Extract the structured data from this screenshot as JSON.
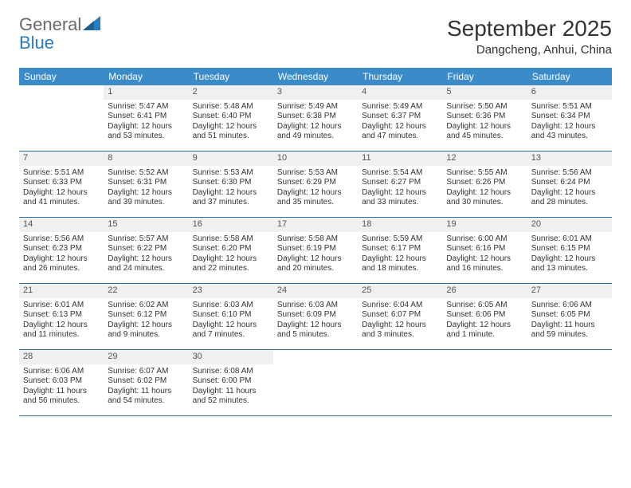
{
  "brand": {
    "line1": "General",
    "line2": "Blue"
  },
  "title": "September 2025",
  "location": "Dangcheng, Anhui, China",
  "colors": {
    "header_bg": "#3b8bc8",
    "header_text": "#ffffff",
    "day_num_bg": "#eef0f1",
    "week_border": "#2b6ea3",
    "brand_gray": "#6a6a6a",
    "brand_blue": "#2b7bbf",
    "text": "#333333",
    "page_bg": "#ffffff"
  },
  "typography": {
    "title_fontsize": 28,
    "location_fontsize": 15,
    "weekday_fontsize": 12,
    "daynum_fontsize": 11,
    "body_fontsize": 10
  },
  "layout": {
    "columns": 7,
    "cell_min_height": 82
  },
  "weekdays": [
    "Sunday",
    "Monday",
    "Tuesday",
    "Wednesday",
    "Thursday",
    "Friday",
    "Saturday"
  ],
  "first_weekday_offset": 1,
  "days": [
    {
      "n": 1,
      "sunrise": "5:47 AM",
      "sunset": "6:41 PM",
      "daylight": "12 hours and 53 minutes."
    },
    {
      "n": 2,
      "sunrise": "5:48 AM",
      "sunset": "6:40 PM",
      "daylight": "12 hours and 51 minutes."
    },
    {
      "n": 3,
      "sunrise": "5:49 AM",
      "sunset": "6:38 PM",
      "daylight": "12 hours and 49 minutes."
    },
    {
      "n": 4,
      "sunrise": "5:49 AM",
      "sunset": "6:37 PM",
      "daylight": "12 hours and 47 minutes."
    },
    {
      "n": 5,
      "sunrise": "5:50 AM",
      "sunset": "6:36 PM",
      "daylight": "12 hours and 45 minutes."
    },
    {
      "n": 6,
      "sunrise": "5:51 AM",
      "sunset": "6:34 PM",
      "daylight": "12 hours and 43 minutes."
    },
    {
      "n": 7,
      "sunrise": "5:51 AM",
      "sunset": "6:33 PM",
      "daylight": "12 hours and 41 minutes."
    },
    {
      "n": 8,
      "sunrise": "5:52 AM",
      "sunset": "6:31 PM",
      "daylight": "12 hours and 39 minutes."
    },
    {
      "n": 9,
      "sunrise": "5:53 AM",
      "sunset": "6:30 PM",
      "daylight": "12 hours and 37 minutes."
    },
    {
      "n": 10,
      "sunrise": "5:53 AM",
      "sunset": "6:29 PM",
      "daylight": "12 hours and 35 minutes."
    },
    {
      "n": 11,
      "sunrise": "5:54 AM",
      "sunset": "6:27 PM",
      "daylight": "12 hours and 33 minutes."
    },
    {
      "n": 12,
      "sunrise": "5:55 AM",
      "sunset": "6:26 PM",
      "daylight": "12 hours and 30 minutes."
    },
    {
      "n": 13,
      "sunrise": "5:56 AM",
      "sunset": "6:24 PM",
      "daylight": "12 hours and 28 minutes."
    },
    {
      "n": 14,
      "sunrise": "5:56 AM",
      "sunset": "6:23 PM",
      "daylight": "12 hours and 26 minutes."
    },
    {
      "n": 15,
      "sunrise": "5:57 AM",
      "sunset": "6:22 PM",
      "daylight": "12 hours and 24 minutes."
    },
    {
      "n": 16,
      "sunrise": "5:58 AM",
      "sunset": "6:20 PM",
      "daylight": "12 hours and 22 minutes."
    },
    {
      "n": 17,
      "sunrise": "5:58 AM",
      "sunset": "6:19 PM",
      "daylight": "12 hours and 20 minutes."
    },
    {
      "n": 18,
      "sunrise": "5:59 AM",
      "sunset": "6:17 PM",
      "daylight": "12 hours and 18 minutes."
    },
    {
      "n": 19,
      "sunrise": "6:00 AM",
      "sunset": "6:16 PM",
      "daylight": "12 hours and 16 minutes."
    },
    {
      "n": 20,
      "sunrise": "6:01 AM",
      "sunset": "6:15 PM",
      "daylight": "12 hours and 13 minutes."
    },
    {
      "n": 21,
      "sunrise": "6:01 AM",
      "sunset": "6:13 PM",
      "daylight": "12 hours and 11 minutes."
    },
    {
      "n": 22,
      "sunrise": "6:02 AM",
      "sunset": "6:12 PM",
      "daylight": "12 hours and 9 minutes."
    },
    {
      "n": 23,
      "sunrise": "6:03 AM",
      "sunset": "6:10 PM",
      "daylight": "12 hours and 7 minutes."
    },
    {
      "n": 24,
      "sunrise": "6:03 AM",
      "sunset": "6:09 PM",
      "daylight": "12 hours and 5 minutes."
    },
    {
      "n": 25,
      "sunrise": "6:04 AM",
      "sunset": "6:07 PM",
      "daylight": "12 hours and 3 minutes."
    },
    {
      "n": 26,
      "sunrise": "6:05 AM",
      "sunset": "6:06 PM",
      "daylight": "12 hours and 1 minute."
    },
    {
      "n": 27,
      "sunrise": "6:06 AM",
      "sunset": "6:05 PM",
      "daylight": "11 hours and 59 minutes."
    },
    {
      "n": 28,
      "sunrise": "6:06 AM",
      "sunset": "6:03 PM",
      "daylight": "11 hours and 56 minutes."
    },
    {
      "n": 29,
      "sunrise": "6:07 AM",
      "sunset": "6:02 PM",
      "daylight": "11 hours and 54 minutes."
    },
    {
      "n": 30,
      "sunrise": "6:08 AM",
      "sunset": "6:00 PM",
      "daylight": "11 hours and 52 minutes."
    }
  ],
  "labels": {
    "sunrise": "Sunrise:",
    "sunset": "Sunset:",
    "daylight": "Daylight:"
  }
}
